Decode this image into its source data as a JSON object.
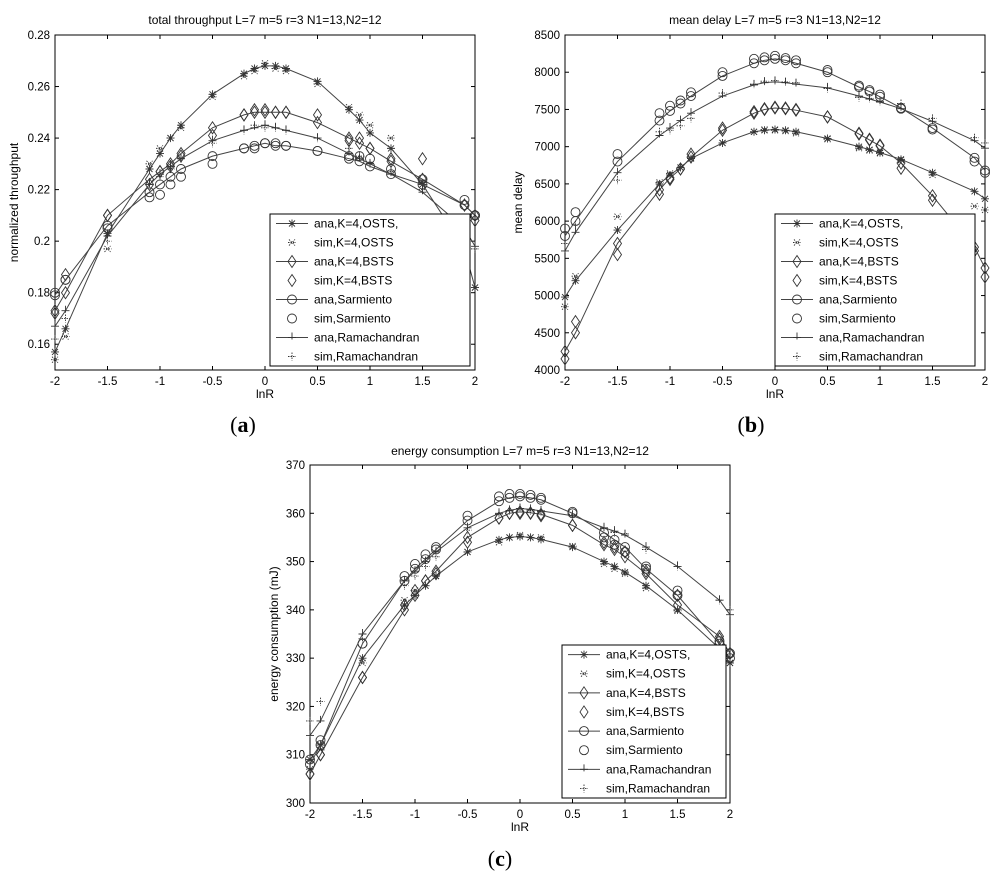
{
  "panels": [
    {
      "label_letter": "a",
      "chart_data": {
        "type": "line",
        "title": "total throughput    L=7 m=5 r=3 N1=13,N2=12",
        "xlabel": "lnR",
        "ylabel": "normalized throughput",
        "xlim": [
          -2,
          2
        ],
        "ylim": [
          0.15,
          0.28
        ],
        "xticks": [
          "-2",
          "-1.5",
          "-1",
          "-0.5",
          "0",
          "0.5",
          "1",
          "1.5",
          "2"
        ],
        "yticks": [
          "0.16",
          "0.18",
          "0.2",
          "0.22",
          "0.24",
          "0.26",
          "0.28"
        ],
        "legend_position": "lower-right",
        "x": [
          -2,
          -1.9,
          -1.5,
          -1.1,
          -1.0,
          -0.9,
          -0.8,
          -0.5,
          -0.2,
          -0.1,
          0.0,
          0.1,
          0.2,
          0.5,
          0.8,
          0.9,
          1.0,
          1.2,
          1.5,
          1.9,
          2.0
        ],
        "series": [
          {
            "name": "ana,K=4,OSTS,",
            "marker": "star",
            "line": true,
            "values": [
              0.157,
              0.166,
              0.203,
              0.228,
              0.234,
              0.24,
              0.245,
              0.257,
              0.265,
              0.267,
              0.268,
              0.268,
              0.267,
              0.262,
              0.251,
              0.247,
              0.242,
              0.236,
              0.222,
              0.197,
              0.182
            ]
          },
          {
            "name": "sim,K=4,OSTS",
            "marker": "dotstar",
            "line": false,
            "values": [
              0.154,
              0.163,
              0.197,
              0.23,
              0.236,
              0.24,
              0.244,
              0.256,
              0.264,
              0.266,
              0.269,
              0.267,
              0.266,
              0.261,
              0.252,
              0.249,
              0.245,
              0.24,
              0.223,
              0.19,
              0.182
            ]
          },
          {
            "name": "ana,K=4,BSTS",
            "marker": "diamond",
            "line": true,
            "values": [
              0.173,
              0.18,
              0.21,
              0.224,
              0.227,
              0.23,
              0.234,
              0.244,
              0.249,
              0.25,
              0.25,
              0.25,
              0.25,
              0.246,
              0.24,
              0.238,
              0.236,
              0.231,
              0.224,
              0.214,
              0.21
            ]
          },
          {
            "name": "sim,K=4,BSTS",
            "marker": "diamond",
            "line": false,
            "values": [
              0.172,
              0.187,
              0.21,
              0.222,
              0.227,
              0.229,
              0.233,
              0.241,
              0.249,
              0.251,
              0.251,
              0.25,
              0.25,
              0.249,
              0.239,
              0.24,
              0.236,
              0.232,
              0.232,
              0.214,
              0.208
            ]
          },
          {
            "name": "ana,Sarmiento",
            "marker": "circle",
            "line": true,
            "values": [
              0.179,
              0.185,
              0.206,
              0.219,
              0.222,
              0.225,
              0.228,
              0.233,
              0.236,
              0.237,
              0.238,
              0.237,
              0.237,
              0.235,
              0.232,
              0.231,
              0.229,
              0.226,
              0.222,
              0.214,
              0.21
            ]
          },
          {
            "name": "sim,Sarmiento",
            "marker": "circle",
            "line": false,
            "values": [
              0.18,
              0.185,
              0.205,
              0.217,
              0.218,
              0.222,
              0.225,
              0.23,
              0.236,
              0.236,
              0.238,
              0.238,
              0.237,
              0.235,
              0.233,
              0.233,
              0.232,
              0.228,
              0.224,
              0.216,
              0.21
            ]
          },
          {
            "name": "ana,Ramachandran",
            "marker": "tick",
            "line": true,
            "values": [
              0.167,
              0.173,
              0.202,
              0.222,
              0.226,
              0.229,
              0.232,
              0.239,
              0.243,
              0.244,
              0.245,
              0.244,
              0.243,
              0.24,
              0.234,
              0.232,
              0.23,
              0.226,
              0.219,
              0.205,
              0.198
            ]
          },
          {
            "name": "sim,Ramachandran",
            "marker": "dotplus",
            "line": false,
            "values": [
              0.162,
              0.17,
              0.2,
              0.222,
              0.225,
              0.228,
              0.232,
              0.238,
              0.243,
              0.245,
              0.244,
              0.244,
              0.243,
              0.24,
              0.236,
              0.233,
              0.23,
              0.227,
              0.22,
              0.203,
              0.197
            ]
          }
        ]
      }
    },
    {
      "label_letter": "b",
      "chart_data": {
        "type": "line",
        "title": "mean delay    L=7 m=5 r=3 N1=13,N2=12",
        "xlabel": "lnR",
        "ylabel": "mean delay",
        "xlim": [
          -2,
          2
        ],
        "ylim": [
          4000,
          8500
        ],
        "xticks": [
          "-2",
          "-1.5",
          "-1",
          "-0.5",
          "0",
          "0.5",
          "1",
          "1.5",
          "2"
        ],
        "yticks": [
          "4000",
          "4500",
          "5000",
          "5500",
          "6000",
          "6500",
          "7000",
          "7500",
          "8000",
          "8500"
        ],
        "legend_position": "lower-right",
        "x": [
          -2,
          -1.9,
          -1.5,
          -1.1,
          -1.0,
          -0.9,
          -0.8,
          -0.5,
          -0.2,
          -0.1,
          0.0,
          0.1,
          0.2,
          0.5,
          0.8,
          0.9,
          1.0,
          1.2,
          1.5,
          1.9,
          2.0
        ],
        "series": [
          {
            "name": "ana,K=4,OSTS,",
            "marker": "star",
            "line": true,
            "values": [
              4980,
              5200,
              5880,
              6500,
              6620,
              6720,
              6840,
              7050,
              7200,
              7220,
              7230,
              7220,
              7200,
              7110,
              7000,
              6960,
              6920,
              6830,
              6650,
              6400,
              6300
            ]
          },
          {
            "name": "sim,K=4,OSTS",
            "marker": "dotstar",
            "line": false,
            "values": [
              4850,
              5260,
              6060,
              6520,
              6640,
              6720,
              6850,
              7050,
              7200,
              7230,
              7220,
              7210,
              7180,
              7100,
              6980,
              6950,
              6910,
              6820,
              6620,
              6200,
              6150
            ]
          },
          {
            "name": "ana,K=4,BSTS",
            "marker": "diamond",
            "line": true,
            "values": [
              4250,
              4500,
              5700,
              6420,
              6580,
              6700,
              6860,
              7220,
              7450,
              7500,
              7520,
              7510,
              7490,
              7400,
              7170,
              7090,
              7010,
              6780,
              6340,
              5650,
              5370
            ]
          },
          {
            "name": "sim,K=4,BSTS",
            "marker": "diamond",
            "line": false,
            "values": [
              4150,
              4650,
              5550,
              6360,
              6560,
              6700,
              6900,
              7250,
              7470,
              7510,
              7530,
              7520,
              7500,
              7400,
              7180,
              7100,
              7020,
              6710,
              6280,
              5600,
              5250
            ]
          },
          {
            "name": "ana,Sarmiento",
            "marker": "circle",
            "line": true,
            "values": [
              5800,
              6000,
              6800,
              7350,
              7480,
              7580,
              7680,
              7950,
              8120,
              8160,
              8180,
              8160,
              8120,
              8000,
              7800,
              7740,
              7670,
              7520,
              7250,
              6850,
              6680
            ]
          },
          {
            "name": "sim,Sarmiento",
            "marker": "circle",
            "line": false,
            "values": [
              5900,
              6120,
              6900,
              7450,
              7550,
              7620,
              7730,
              8000,
              8180,
              8200,
              8220,
              8190,
              8160,
              8030,
              7820,
              7760,
              7700,
              7510,
              7230,
              6800,
              6650
            ]
          },
          {
            "name": "ana,Ramachandran",
            "marker": "tick",
            "line": true,
            "values": [
              5600,
              5850,
              6650,
              7150,
              7250,
              7350,
              7450,
              7680,
              7830,
              7860,
              7870,
              7860,
              7840,
              7790,
              7680,
              7640,
              7600,
              7510,
              7340,
              7080,
              6980
            ]
          },
          {
            "name": "sim,Ramachandran",
            "marker": "dotplus",
            "line": false,
            "values": [
              5700,
              5950,
              6550,
              7200,
              7220,
              7280,
              7380,
              7720,
              7840,
              7880,
              7890,
              7870,
              7860,
              7780,
              7660,
              7650,
              7610,
              7580,
              7380,
              7120,
              7050
            ]
          }
        ]
      }
    },
    {
      "label_letter": "c",
      "chart_data": {
        "type": "line",
        "title": "energy consumption    L=7 m=5 r=3 N1=13,N2=12",
        "xlabel": "lnR",
        "ylabel": "energy consumption (mJ)",
        "xlim": [
          -2,
          2
        ],
        "ylim": [
          300,
          370
        ],
        "xticks": [
          "-2",
          "-1.5",
          "-1",
          "-0.5",
          "0",
          "0.5",
          "1",
          "1.5",
          "2"
        ],
        "yticks": [
          "300",
          "310",
          "320",
          "330",
          "340",
          "350",
          "360",
          "370"
        ],
        "legend_position": "lower-right",
        "x": [
          -2,
          -1.9,
          -1.5,
          -1.1,
          -1.0,
          -0.9,
          -0.8,
          -0.5,
          -0.2,
          -0.1,
          0.0,
          0.1,
          0.2,
          0.5,
          0.8,
          0.9,
          1.0,
          1.2,
          1.5,
          1.9,
          2.0
        ],
        "series": [
          {
            "name": "ana,K=4,OSTS,",
            "marker": "star",
            "line": true,
            "values": [
              309,
              312,
              330,
              341,
              343,
              345,
              347,
              352,
              354.5,
              355,
              355.2,
              355,
              354.6,
              353,
              350,
              349,
              347.8,
              345,
              340,
              332,
              329
            ]
          },
          {
            "name": "sim,K=4,OSTS",
            "marker": "dotstar",
            "line": false,
            "values": [
              307,
              311,
              329,
              342,
              344,
              345,
              347,
              352,
              354,
              355,
              355.5,
              355,
              355,
              353.2,
              349.5,
              348.5,
              347.5,
              344.5,
              339.8,
              331,
              329
            ]
          },
          {
            "name": "ana,K=4,BSTS",
            "marker": "diamond",
            "line": true,
            "values": [
              306,
              310,
              326,
              340,
              343,
              346,
              348,
              355,
              359,
              360,
              360.3,
              360.1,
              359.8,
              357.5,
              353.5,
              352.5,
              351,
              347.5,
              341,
              334.5,
              331
            ]
          },
          {
            "name": "sim,K=4,BSTS",
            "marker": "diamond",
            "line": false,
            "values": [
              306,
              310,
              326,
              341,
              344,
              346,
              347.5,
              354,
              359,
              360,
              360,
              360,
              359.5,
              357.5,
              354,
              353,
              352,
              348,
              343,
              334,
              331
            ]
          },
          {
            "name": "ana,Sarmiento",
            "marker": "circle",
            "line": true,
            "values": [
              308,
              312,
              333,
              346,
              348.5,
              350.5,
              352.5,
              358.5,
              362.5,
              363.2,
              363.5,
              363.2,
              362.8,
              360,
              356,
              354.5,
              353,
              348.5,
              343,
              333,
              330
            ]
          },
          {
            "name": "sim,Sarmiento",
            "marker": "circle",
            "line": false,
            "values": [
              309,
              313,
              333,
              347,
              349.5,
              351.5,
              353,
              359.5,
              363.5,
              364,
              364,
              363.8,
              363.2,
              360.3,
              355,
              353.5,
              352,
              349,
              344,
              333.5,
              331
            ]
          },
          {
            "name": "ana,Ramachandran",
            "marker": "tick",
            "line": true,
            "values": [
              314,
              317,
              335,
              346,
              348,
              350,
              352,
              357,
              360,
              360.6,
              361,
              360.8,
              360.5,
              359.5,
              357,
              356.3,
              355.5,
              353,
              349,
              342,
              339
            ]
          },
          {
            "name": "sim,Ramachandran",
            "marker": "dotplus",
            "line": false,
            "values": [
              317,
              321,
              334,
              345,
              347,
              349,
              351,
              356.5,
              359.8,
              360.5,
              361,
              360.5,
              360.3,
              359.8,
              356.8,
              356,
              355.8,
              352.5,
              349,
              342,
              340
            ]
          }
        ]
      }
    }
  ]
}
